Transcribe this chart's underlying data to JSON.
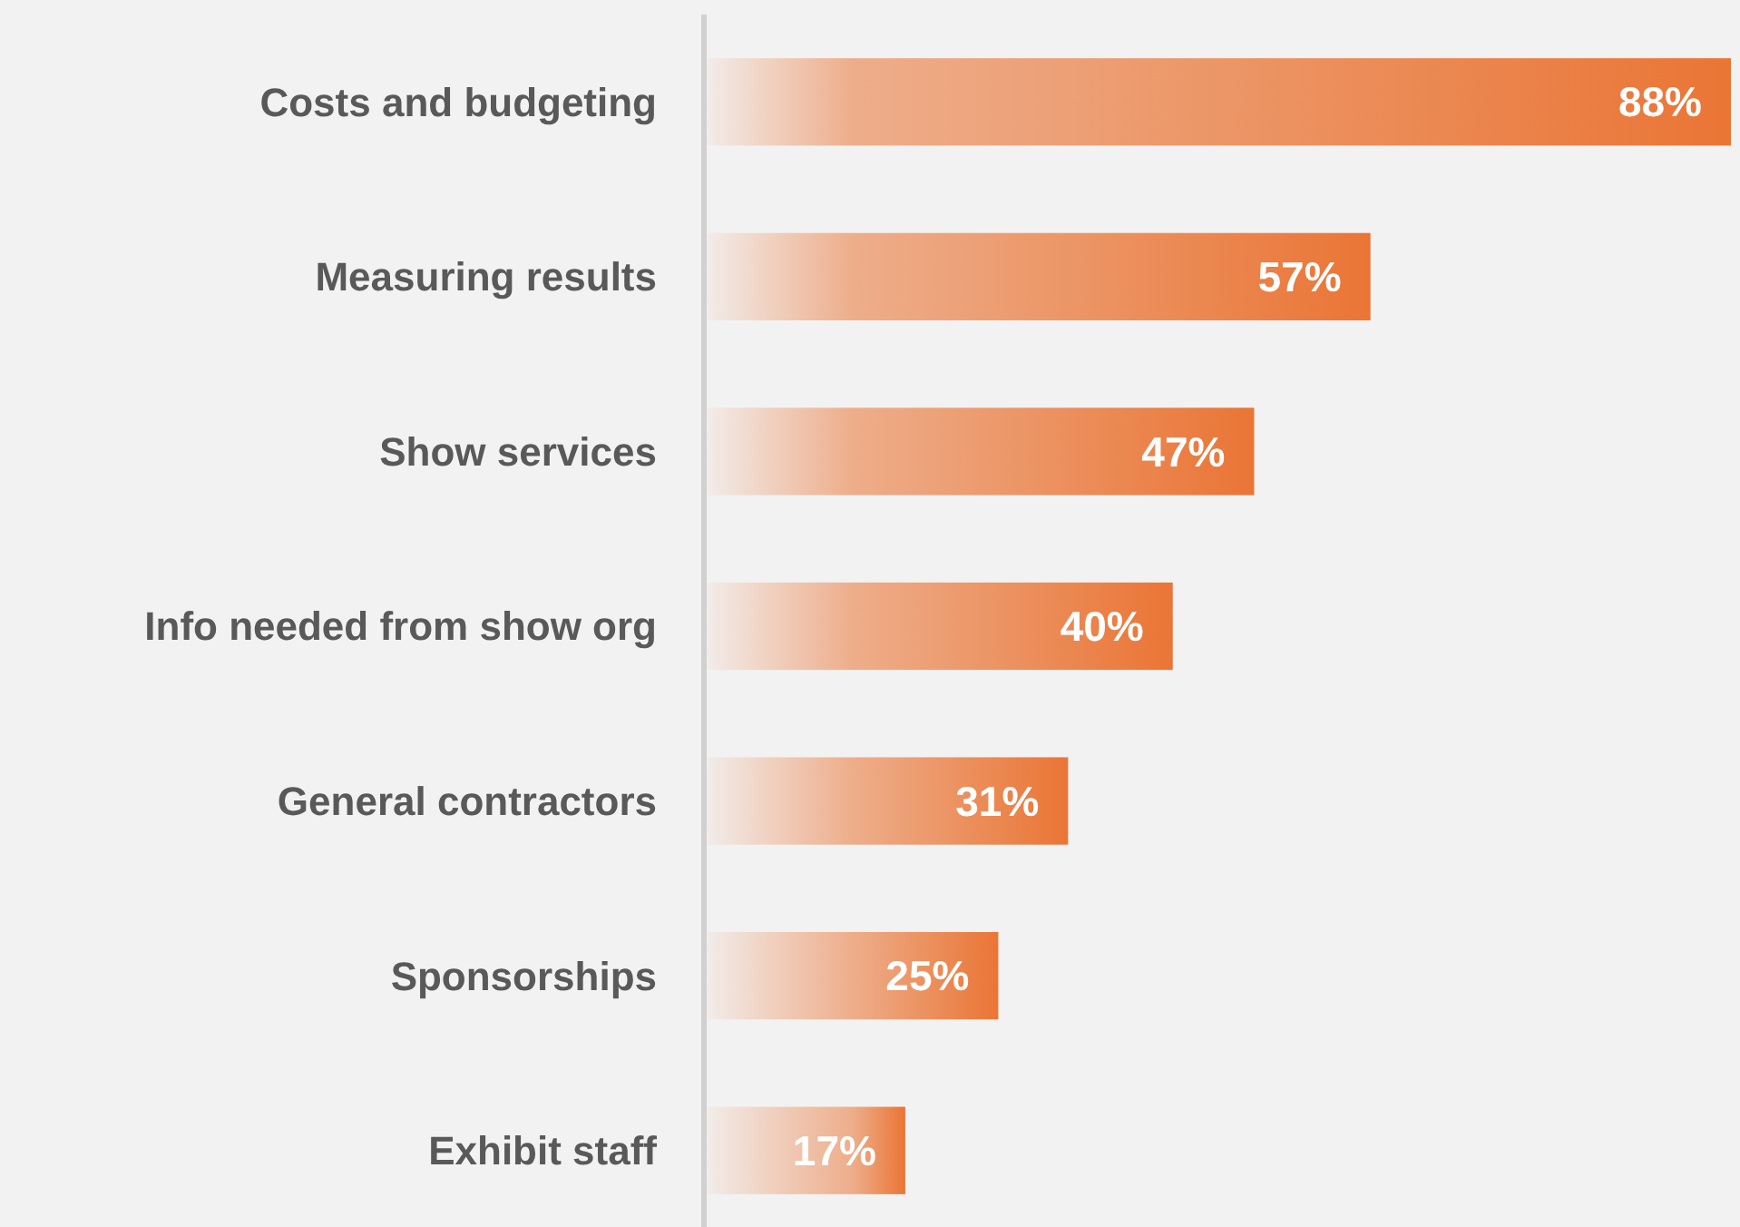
{
  "chart_data": {
    "type": "bar",
    "orientation": "horizontal",
    "categories": [
      "Costs and budgeting",
      "Measuring results",
      "Show services",
      "Info needed from show org",
      "General contractors",
      "Sponsorships",
      "Exhibit staff"
    ],
    "values": [
      88,
      57,
      47,
      40,
      31,
      25,
      17
    ],
    "value_labels": [
      "88%",
      "57%",
      "47%",
      "40%",
      "31%",
      "25%",
      "17%"
    ],
    "color": "#ea7535",
    "grid": false
  }
}
